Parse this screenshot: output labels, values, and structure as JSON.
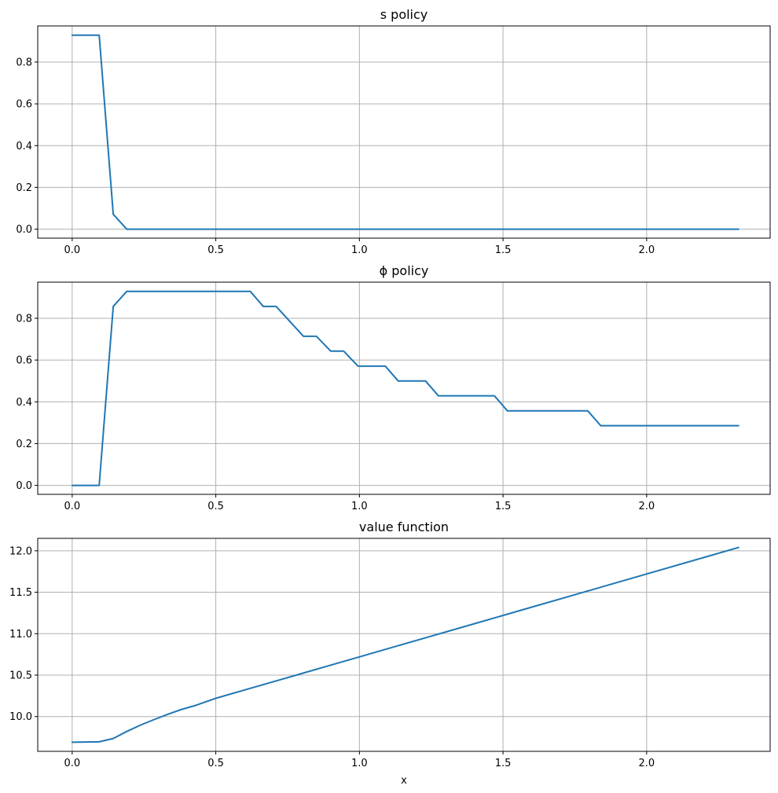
{
  "chart_data": [
    {
      "type": "line",
      "title": "s policy",
      "xlabel": "",
      "ylabel": "",
      "xlim": [
        -0.12,
        2.43
      ],
      "ylim": [
        -0.043,
        0.973
      ],
      "xticks": [
        0.0,
        0.5,
        1.0,
        1.5,
        2.0
      ],
      "xtick_labels": [
        "0.0",
        "0.5",
        "1.0",
        "1.5",
        "2.0"
      ],
      "yticks": [
        0.0,
        0.2,
        0.4,
        0.6,
        0.8
      ],
      "ytick_labels": [
        "0.0",
        "0.2",
        "0.4",
        "0.6",
        "0.8"
      ],
      "grid": true,
      "series": [
        {
          "color": "#1f77b4",
          "x": [
            0.0,
            0.094,
            0.143,
            0.19,
            2.32
          ],
          "y": [
            0.929,
            0.929,
            0.071,
            0.0,
            0.0
          ]
        }
      ]
    },
    {
      "type": "line",
      "title": "ϕ policy",
      "xlabel": "",
      "ylabel": "",
      "xlim": [
        -0.12,
        2.43
      ],
      "ylim": [
        -0.043,
        0.973
      ],
      "xticks": [
        0.0,
        0.5,
        1.0,
        1.5,
        2.0
      ],
      "xtick_labels": [
        "0.0",
        "0.5",
        "1.0",
        "1.5",
        "2.0"
      ],
      "yticks": [
        0.0,
        0.2,
        0.4,
        0.6,
        0.8
      ],
      "ytick_labels": [
        "0.0",
        "0.2",
        "0.4",
        "0.6",
        "0.8"
      ],
      "grid": true,
      "series": [
        {
          "color": "#1f77b4",
          "x": [
            0.0,
            0.094,
            0.143,
            0.19,
            0.62,
            0.665,
            0.71,
            0.805,
            0.85,
            0.9,
            0.945,
            0.995,
            1.09,
            1.135,
            1.23,
            1.275,
            1.47,
            1.515,
            1.795,
            1.84,
            2.32
          ],
          "y": [
            0.0,
            0.0,
            0.857,
            0.929,
            0.929,
            0.857,
            0.857,
            0.714,
            0.714,
            0.643,
            0.643,
            0.571,
            0.571,
            0.5,
            0.5,
            0.429,
            0.429,
            0.357,
            0.357,
            0.286,
            0.286
          ]
        }
      ]
    },
    {
      "type": "line",
      "title": "value function",
      "xlabel": "x",
      "ylabel": "",
      "xlim": [
        -0.12,
        2.43
      ],
      "ylim": [
        9.58,
        12.15
      ],
      "xticks": [
        0.0,
        0.5,
        1.0,
        1.5,
        2.0
      ],
      "xtick_labels": [
        "0.0",
        "0.5",
        "1.0",
        "1.5",
        "2.0"
      ],
      "yticks": [
        10.0,
        10.5,
        11.0,
        11.5,
        12.0
      ],
      "ytick_labels": [
        "10.0",
        "10.5",
        "11.0",
        "11.5",
        "12.0"
      ],
      "grid": true,
      "series": [
        {
          "color": "#1f77b4",
          "x": [
            0.0,
            0.094,
            0.143,
            0.19,
            0.24,
            0.29,
            0.335,
            0.38,
            0.43,
            0.5,
            0.6,
            0.7,
            0.8,
            0.9,
            1.0,
            1.2,
            1.4,
            1.6,
            1.8,
            2.0,
            2.2,
            2.32
          ],
          "y": [
            9.69,
            9.695,
            9.735,
            9.82,
            9.9,
            9.97,
            10.03,
            10.085,
            10.135,
            10.22,
            10.32,
            10.42,
            10.52,
            10.62,
            10.72,
            10.92,
            11.12,
            11.32,
            11.52,
            11.72,
            11.92,
            12.04
          ]
        }
      ]
    }
  ]
}
